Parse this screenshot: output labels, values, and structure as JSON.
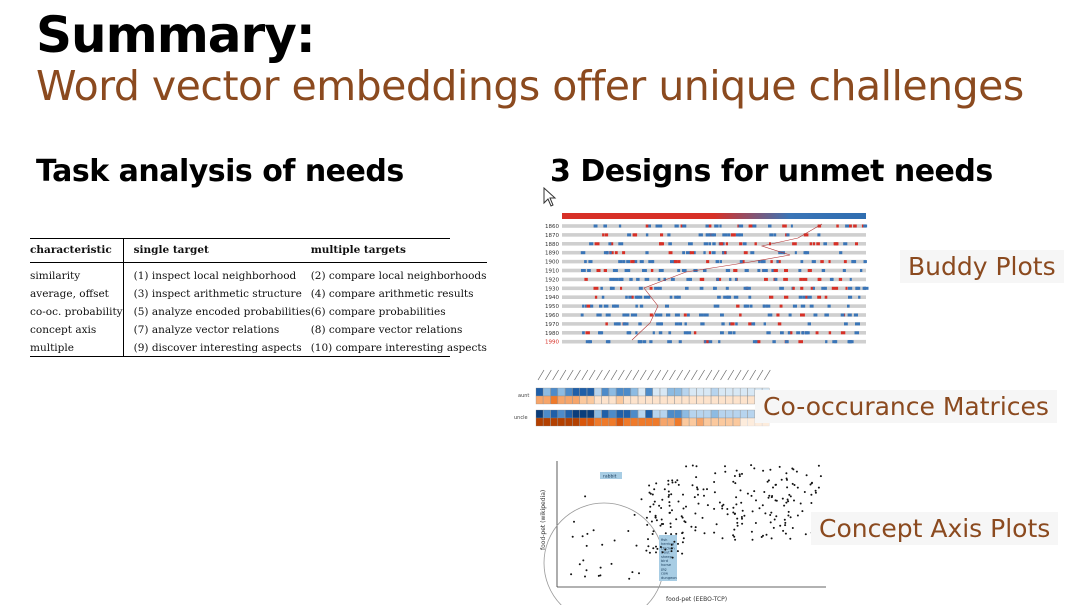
{
  "slide": {
    "title": "Summary:",
    "subtitle": "Word vector embeddings offer unique challenges",
    "left_heading": "Task analysis of needs",
    "right_heading": "3 Designs for unmet needs"
  },
  "table": {
    "headers": [
      "characteristic",
      "single target",
      "multiple targets"
    ],
    "rows": [
      [
        "similarity",
        "(1) inspect local neighborhood",
        "(2) compare local neighborhoods"
      ],
      [
        "average, offset",
        "(3) inspect arithmetic structure",
        "(4) compare arithmetic results"
      ],
      [
        "co-oc. probability",
        "(5) analyze encoded probabilities",
        "(6) compare probabilities"
      ],
      [
        "concept axis",
        "(7) analyze vector relations",
        "(8) compare vector relations"
      ],
      [
        "multiple",
        "(9) discover interesting aspects",
        "(10) compare interesting aspects"
      ]
    ]
  },
  "designs": {
    "buddy": "Buddy Plots",
    "cooc": "Co-occurance Matrices",
    "concept": "Concept Axis Plots"
  },
  "buddy_plot": {
    "years": [
      "1860",
      "1870",
      "1880",
      "1890",
      "1900",
      "1910",
      "1920",
      "1930",
      "1940",
      "1950",
      "1960",
      "1970",
      "1980",
      "1990"
    ]
  },
  "cooc_matrix": {
    "row_labels": [
      "aunt",
      "uncle"
    ]
  },
  "concept_plot": {
    "xlabel": "food-pet (EEBO-TCP)",
    "ylabel": "food-pet (wikipedia)",
    "callout": "rabbit",
    "cluster_words": [
      "fish",
      "herring",
      "chicken",
      "trout",
      "sheep",
      "bird",
      "horse",
      "pig",
      "cow",
      "dungeon"
    ]
  },
  "colors": {
    "accent": "#8b4a1f",
    "red": "#d73027",
    "blue": "#3a75b7"
  }
}
